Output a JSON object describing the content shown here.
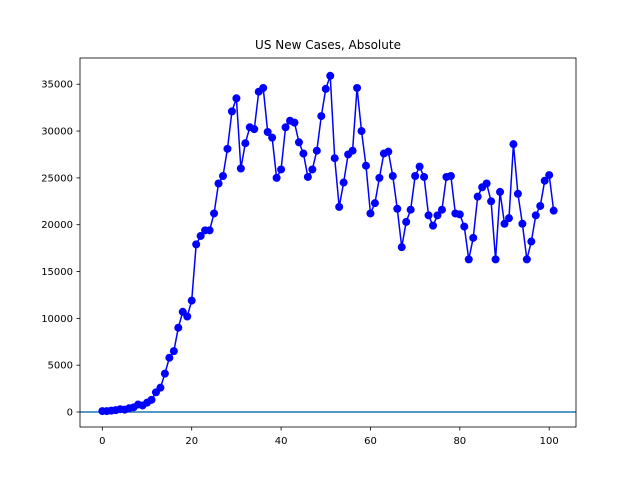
{
  "chart_data": {
    "type": "line",
    "title": "US New Cases, Absolute",
    "xlabel": "",
    "ylabel": "",
    "xlim": [
      -5,
      106
    ],
    "ylim": [
      -1600,
      37800
    ],
    "xticks": [
      0,
      20,
      40,
      60,
      80,
      100
    ],
    "yticks": [
      0,
      5000,
      10000,
      15000,
      20000,
      25000,
      30000,
      35000
    ],
    "grid": false,
    "series": [
      {
        "color": "#0000ff",
        "marker": "circle",
        "x": [
          0,
          1,
          2,
          3,
          4,
          5,
          6,
          7,
          8,
          9,
          10,
          11,
          12,
          13,
          14,
          15,
          16,
          17,
          18,
          19,
          20,
          21,
          22,
          23,
          24,
          25,
          26,
          27,
          28,
          29,
          30,
          31,
          32,
          33,
          34,
          35,
          36,
          37,
          38,
          39,
          40,
          41,
          42,
          43,
          44,
          45,
          46,
          47,
          48,
          49,
          50,
          51,
          52,
          53,
          54,
          55,
          56,
          57,
          58,
          59,
          60,
          61,
          62,
          63,
          64,
          65,
          66,
          67,
          68,
          69,
          70,
          71,
          72,
          73,
          74,
          75,
          76,
          77,
          78,
          79,
          80,
          81,
          82,
          83,
          84,
          85,
          86,
          87,
          88,
          89,
          90,
          91,
          92,
          93,
          94,
          95,
          96,
          97,
          98,
          99,
          100,
          101
        ],
        "y": [
          100,
          100,
          150,
          200,
          300,
          250,
          400,
          500,
          800,
          700,
          1000,
          1300,
          2100,
          2600,
          4100,
          5800,
          6500,
          9000,
          10700,
          10200,
          11900,
          17900,
          18800,
          19400,
          19400,
          21200,
          24400,
          25200,
          28100,
          32100,
          33500,
          26000,
          28700,
          30400,
          30200,
          34200,
          34600,
          29900,
          29300,
          25000,
          25900,
          30400,
          31100,
          30900,
          28800,
          27600,
          25100,
          25900,
          27900,
          31600,
          34500,
          35900,
          27100,
          21900,
          24500,
          27500,
          27900,
          34600,
          30000,
          26300,
          21200,
          22300,
          25000,
          27600,
          27800,
          25200,
          21700,
          17600,
          20300,
          21600,
          25200,
          26200,
          25100,
          21000,
          19900,
          21000,
          21600,
          25100,
          25200,
          21200,
          21100,
          19800,
          16300,
          18600,
          23000,
          24000,
          24400,
          22500,
          16300,
          23500,
          20100,
          20700,
          28600,
          23300,
          20100,
          16300,
          18200,
          21000,
          22000,
          24700,
          25300,
          21500
        ]
      }
    ],
    "reference_lines": [
      {
        "y": 0,
        "color": "#1f77b4"
      }
    ]
  }
}
